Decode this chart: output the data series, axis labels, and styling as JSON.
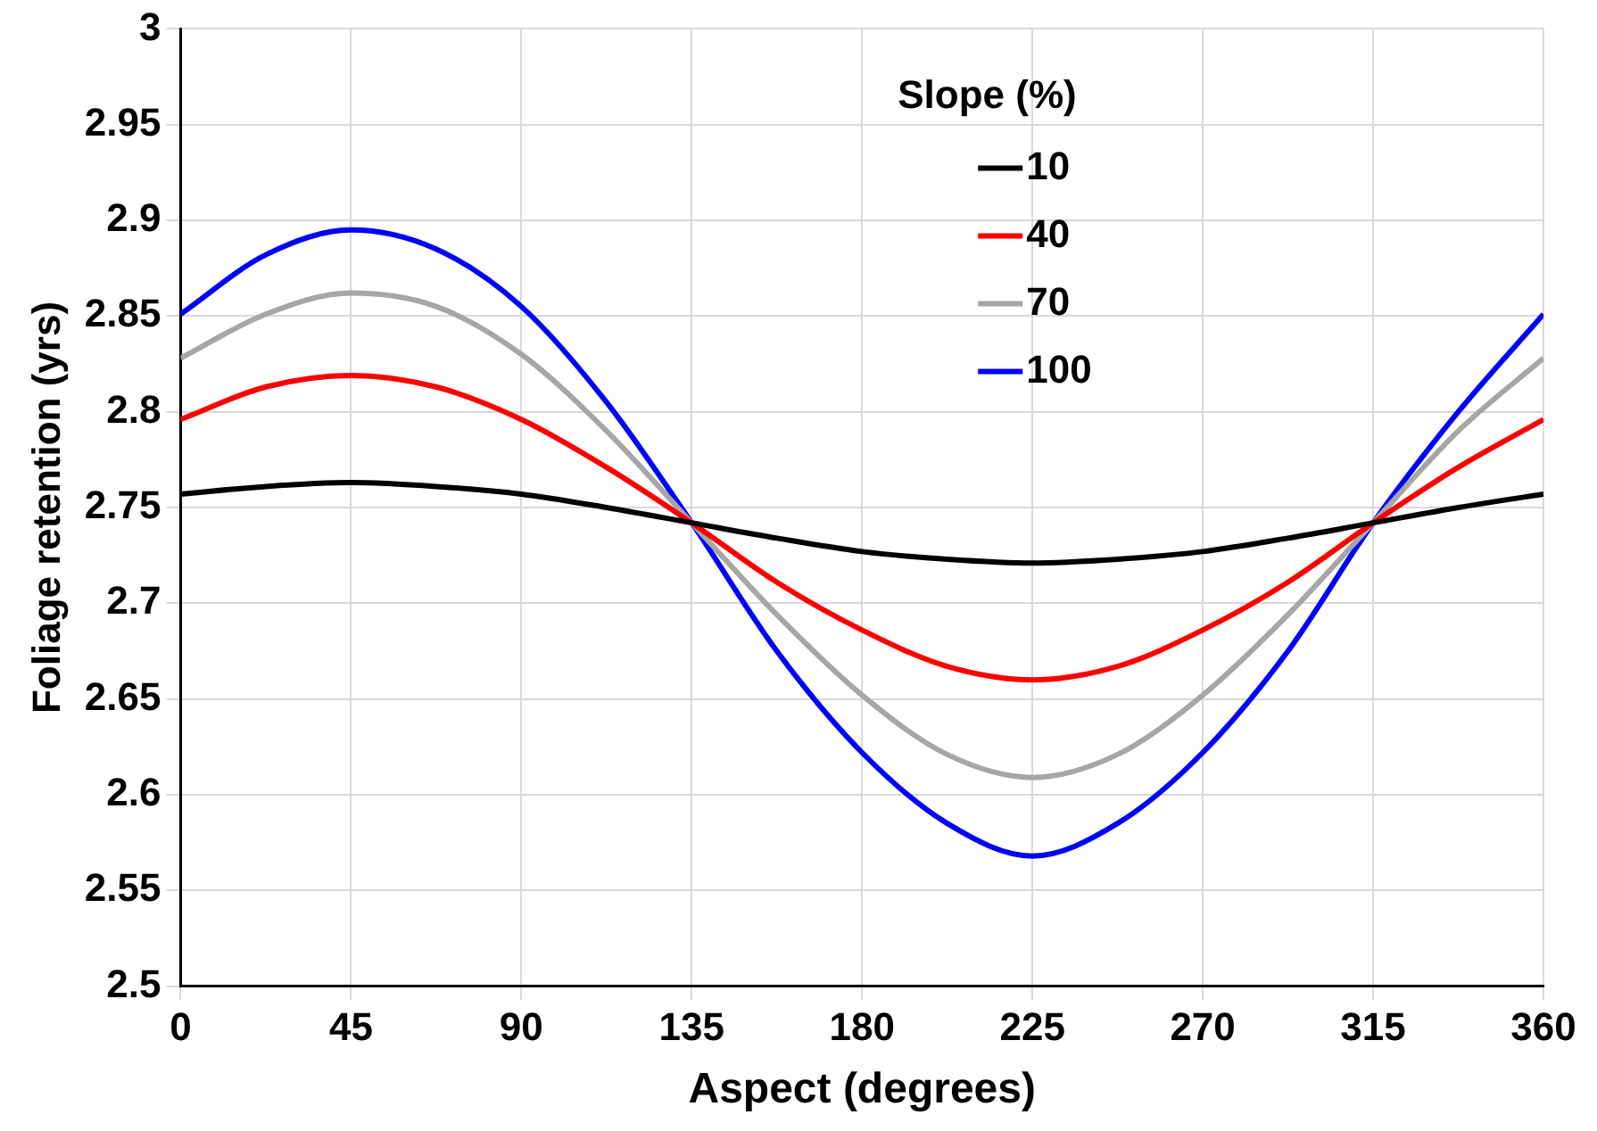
{
  "chart_data": {
    "type": "line",
    "xlabel": "Aspect (degrees)",
    "ylabel": "Foliage retention (yrs)",
    "legend_title": "Slope (%)",
    "legend": "top right",
    "grid": true,
    "marker": "none",
    "line_style": "solid",
    "xlim": [
      0,
      360
    ],
    "xticks": [
      0,
      45,
      90,
      135,
      180,
      225,
      270,
      315,
      360
    ],
    "ylim": [
      2.5,
      3
    ],
    "yticks": [
      2.5,
      2.55,
      2.6,
      2.65,
      2.7,
      2.75,
      2.8,
      2.85,
      2.9,
      2.95,
      3
    ],
    "x": [
      0,
      22.5,
      45,
      67.5,
      90,
      112.5,
      135,
      157.5,
      180,
      202.5,
      225,
      247.5,
      270,
      292.5,
      315,
      337.5,
      360
    ],
    "series": [
      {
        "name": "10",
        "color": "#000000",
        "values": [
          2.757,
          2.761,
          2.763,
          2.761,
          2.757,
          2.75,
          2.742,
          2.734,
          2.727,
          2.723,
          2.721,
          2.723,
          2.727,
          2.734,
          2.742,
          2.75,
          2.757
        ]
      },
      {
        "name": "40",
        "color": "#ff0000",
        "values": [
          2.796,
          2.813,
          2.819,
          2.813,
          2.796,
          2.771,
          2.742,
          2.711,
          2.686,
          2.667,
          2.66,
          2.667,
          2.686,
          2.711,
          2.742,
          2.771,
          2.796
        ]
      },
      {
        "name": "70",
        "color": "#a6a6a6",
        "values": [
          2.828,
          2.851,
          2.862,
          2.855,
          2.83,
          2.79,
          2.742,
          2.694,
          2.652,
          2.621,
          2.609,
          2.621,
          2.652,
          2.694,
          2.742,
          2.79,
          2.828
        ]
      },
      {
        "name": "100",
        "color": "#0000ff",
        "values": [
          2.851,
          2.882,
          2.895,
          2.885,
          2.855,
          2.805,
          2.742,
          2.675,
          2.622,
          2.585,
          2.568,
          2.585,
          2.622,
          2.675,
          2.742,
          2.8,
          2.851
        ]
      }
    ]
  }
}
